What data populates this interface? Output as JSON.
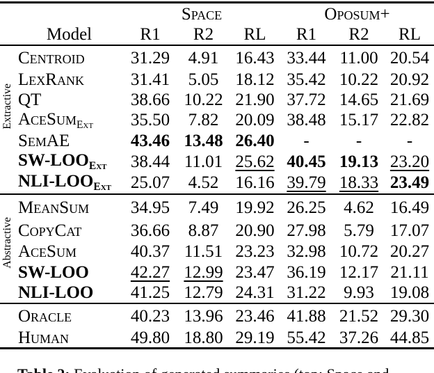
{
  "table": {
    "col_groups": [
      {
        "label": "Space"
      },
      {
        "label": "Oposum+"
      }
    ],
    "model_header": "Model",
    "metric_headers": [
      "R1",
      "R2",
      "RL",
      "R1",
      "R2",
      "RL"
    ],
    "sections": [
      {
        "group_label": "Extractive",
        "rows": [
          {
            "model": "Centroid",
            "sub": "",
            "bold": false,
            "values": [
              {
                "text": "31.29",
                "style": "plain"
              },
              {
                "text": "4.91",
                "style": "plain"
              },
              {
                "text": "16.43",
                "style": "plain"
              },
              {
                "text": "33.44",
                "style": "plain"
              },
              {
                "text": "11.00",
                "style": "plain"
              },
              {
                "text": "20.54",
                "style": "plain"
              }
            ]
          },
          {
            "model": "LexRank",
            "sub": "",
            "bold": false,
            "values": [
              {
                "text": "31.41",
                "style": "plain"
              },
              {
                "text": "5.05",
                "style": "plain"
              },
              {
                "text": "18.12",
                "style": "plain"
              },
              {
                "text": "35.42",
                "style": "plain"
              },
              {
                "text": "10.22",
                "style": "plain"
              },
              {
                "text": "20.92",
                "style": "plain"
              }
            ]
          },
          {
            "model": "QT",
            "sub": "",
            "bold": false,
            "values": [
              {
                "text": "38.66",
                "style": "plain"
              },
              {
                "text": "10.22",
                "style": "plain"
              },
              {
                "text": "21.90",
                "style": "plain"
              },
              {
                "text": "37.72",
                "style": "plain"
              },
              {
                "text": "14.65",
                "style": "plain"
              },
              {
                "text": "21.69",
                "style": "plain"
              }
            ]
          },
          {
            "model": "AceSum",
            "sub": "Ext",
            "bold": false,
            "values": [
              {
                "text": "35.50",
                "style": "plain"
              },
              {
                "text": "7.82",
                "style": "plain"
              },
              {
                "text": "20.09",
                "style": "plain"
              },
              {
                "text": "38.48",
                "style": "plain"
              },
              {
                "text": "15.17",
                "style": "plain"
              },
              {
                "text": "22.82",
                "style": "plain"
              }
            ]
          },
          {
            "model": "SemAE",
            "sub": "",
            "bold": false,
            "values": [
              {
                "text": "43.46",
                "style": "bold"
              },
              {
                "text": "13.48",
                "style": "bold"
              },
              {
                "text": "26.40",
                "style": "bold"
              },
              {
                "text": "-",
                "style": "plain"
              },
              {
                "text": "-",
                "style": "plain"
              },
              {
                "text": "-",
                "style": "plain"
              }
            ]
          },
          {
            "model": "SW-LOO",
            "sub": "Ext",
            "bold": true,
            "values": [
              {
                "text": "38.44",
                "style": "plain"
              },
              {
                "text": "11.01",
                "style": "plain"
              },
              {
                "text": "25.62",
                "style": "underline"
              },
              {
                "text": "40.45",
                "style": "bold"
              },
              {
                "text": "19.13",
                "style": "bold"
              },
              {
                "text": "23.20",
                "style": "underline"
              }
            ]
          },
          {
            "model": "NLI-LOO",
            "sub": "Ext",
            "bold": true,
            "values": [
              {
                "text": "25.07",
                "style": "plain"
              },
              {
                "text": "4.52",
                "style": "plain"
              },
              {
                "text": "16.16",
                "style": "plain"
              },
              {
                "text": "39.79",
                "style": "underline"
              },
              {
                "text": "18.33",
                "style": "underline"
              },
              {
                "text": "23.49",
                "style": "bold"
              }
            ]
          }
        ]
      },
      {
        "group_label": "Abstractive",
        "rows": [
          {
            "model": "MeanSum",
            "sub": "",
            "bold": false,
            "values": [
              {
                "text": "34.95",
                "style": "plain"
              },
              {
                "text": "7.49",
                "style": "plain"
              },
              {
                "text": "19.92",
                "style": "plain"
              },
              {
                "text": "26.25",
                "style": "plain"
              },
              {
                "text": "4.62",
                "style": "plain"
              },
              {
                "text": "16.49",
                "style": "plain"
              }
            ]
          },
          {
            "model": "CopyCat",
            "sub": "",
            "bold": false,
            "values": [
              {
                "text": "36.66",
                "style": "plain"
              },
              {
                "text": "8.87",
                "style": "plain"
              },
              {
                "text": "20.90",
                "style": "plain"
              },
              {
                "text": "27.98",
                "style": "plain"
              },
              {
                "text": "5.79",
                "style": "plain"
              },
              {
                "text": "17.07",
                "style": "plain"
              }
            ]
          },
          {
            "model": "AceSum",
            "sub": "",
            "bold": false,
            "values": [
              {
                "text": "40.37",
                "style": "plain"
              },
              {
                "text": "11.51",
                "style": "plain"
              },
              {
                "text": "23.23",
                "style": "plain"
              },
              {
                "text": "32.98",
                "style": "plain"
              },
              {
                "text": "10.72",
                "style": "plain"
              },
              {
                "text": "20.27",
                "style": "plain"
              }
            ]
          },
          {
            "model": "SW-LOO",
            "sub": "",
            "bold": true,
            "values": [
              {
                "text": "42.27",
                "style": "underline"
              },
              {
                "text": "12.99",
                "style": "underline"
              },
              {
                "text": "23.47",
                "style": "plain"
              },
              {
                "text": "36.19",
                "style": "plain"
              },
              {
                "text": "12.17",
                "style": "plain"
              },
              {
                "text": "21.11",
                "style": "plain"
              }
            ]
          },
          {
            "model": "NLI-LOO",
            "sub": "",
            "bold": true,
            "values": [
              {
                "text": "41.25",
                "style": "plain"
              },
              {
                "text": "12.79",
                "style": "plain"
              },
              {
                "text": "24.31",
                "style": "plain"
              },
              {
                "text": "31.22",
                "style": "plain"
              },
              {
                "text": "9.93",
                "style": "plain"
              },
              {
                "text": "19.08",
                "style": "plain"
              }
            ]
          }
        ]
      },
      {
        "group_label": "",
        "rows": [
          {
            "model": "Oracle",
            "sub": "",
            "bold": false,
            "values": [
              {
                "text": "40.23",
                "style": "plain"
              },
              {
                "text": "13.96",
                "style": "plain"
              },
              {
                "text": "23.46",
                "style": "plain"
              },
              {
                "text": "41.88",
                "style": "plain"
              },
              {
                "text": "21.52",
                "style": "plain"
              },
              {
                "text": "29.30",
                "style": "plain"
              }
            ]
          },
          {
            "model": "Human",
            "sub": "",
            "bold": false,
            "values": [
              {
                "text": "49.80",
                "style": "plain"
              },
              {
                "text": "18.80",
                "style": "plain"
              },
              {
                "text": "29.19",
                "style": "plain"
              },
              {
                "text": "55.42",
                "style": "plain"
              },
              {
                "text": "37.26",
                "style": "plain"
              },
              {
                "text": "44.85",
                "style": "plain"
              }
            ]
          }
        ]
      }
    ]
  },
  "caption": {
    "prefix": "Table 2:",
    "text": "Evaluation of generated summaries (top: Space and"
  }
}
